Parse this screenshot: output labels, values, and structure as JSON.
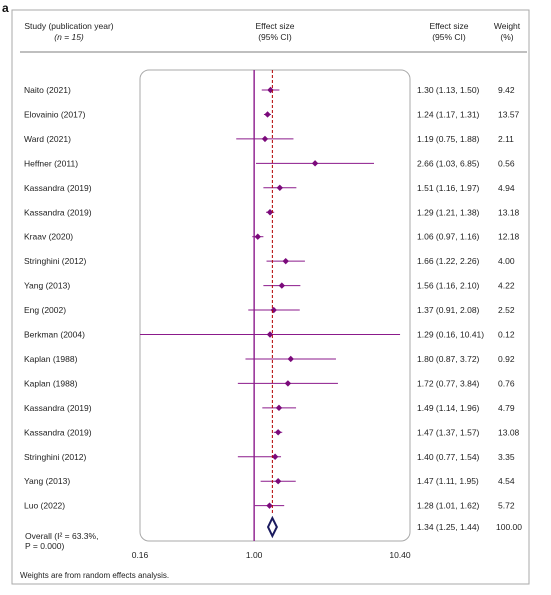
{
  "panel_label": "a",
  "header": {
    "study": "Study (publication year)",
    "study_n": "(n = 15)",
    "effect_mid": "Effect size",
    "effect_mid_ci": "(95% CI)",
    "effect_right": "Effect size",
    "effect_right_ci": "(95% CI)",
    "weight": "Weight",
    "weight_unit": "(%)"
  },
  "footnote": "Weights are from random effects analysis.",
  "colors": {
    "point": "#7b0a7b",
    "line": "#8b1a8b",
    "diamond": "#1a1a5e",
    "box": "#aaaaaa"
  },
  "chart_data": {
    "type": "forest",
    "x_scale": "log",
    "xlim": [
      0.16,
      10.4
    ],
    "xticks": [
      "0.16",
      "1.00",
      "10.40"
    ],
    "xtick_values": [
      0.16,
      1.0,
      10.4
    ],
    "null_value": 1.0,
    "studies": [
      {
        "study": "Naito (2021)",
        "es": 1.3,
        "lo": 1.13,
        "hi": 1.5,
        "ci": "1.30 (1.13, 1.50)",
        "weight": "9.42"
      },
      {
        "study": "Elovainio (2017)",
        "es": 1.24,
        "lo": 1.17,
        "hi": 1.31,
        "ci": "1.24 (1.17, 1.31)",
        "weight": "13.57"
      },
      {
        "study": "Ward (2021)",
        "es": 1.19,
        "lo": 0.75,
        "hi": 1.88,
        "ci": "1.19 (0.75, 1.88)",
        "weight": "2.11"
      },
      {
        "study": "Heffner (2011)",
        "es": 2.66,
        "lo": 1.03,
        "hi": 6.85,
        "ci": "2.66 (1.03, 6.85)",
        "weight": "0.56"
      },
      {
        "study": "Kassandra (2019)",
        "es": 1.51,
        "lo": 1.16,
        "hi": 1.97,
        "ci": "1.51 (1.16, 1.97)",
        "weight": "4.94"
      },
      {
        "study": "Kassandra (2019)",
        "es": 1.29,
        "lo": 1.21,
        "hi": 1.38,
        "ci": "1.29 (1.21, 1.38)",
        "weight": "13.18"
      },
      {
        "study": "Kraav (2020)",
        "es": 1.06,
        "lo": 0.97,
        "hi": 1.16,
        "ci": "1.06 (0.97, 1.16)",
        "weight": "12.18"
      },
      {
        "study": "Stringhini (2012)",
        "es": 1.66,
        "lo": 1.22,
        "hi": 2.26,
        "ci": "1.66 (1.22, 2.26)",
        "weight": "4.00"
      },
      {
        "study": "Yang (2013)",
        "es": 1.56,
        "lo": 1.16,
        "hi": 2.1,
        "ci": "1.56 (1.16, 2.10)",
        "weight": "4.22"
      },
      {
        "study": "Eng (2002)",
        "es": 1.37,
        "lo": 0.91,
        "hi": 2.08,
        "ci": "1.37 (0.91, 2.08)",
        "weight": "2.52"
      },
      {
        "study": "Berkman (2004)",
        "es": 1.29,
        "lo": 0.16,
        "hi": 10.41,
        "ci": "1.29 (0.16, 10.41)",
        "weight": "0.12"
      },
      {
        "study": "Kaplan (1988)",
        "es": 1.8,
        "lo": 0.87,
        "hi": 3.72,
        "ci": "1.80 (0.87, 3.72)",
        "weight": "0.92"
      },
      {
        "study": "Kaplan (1988)",
        "es": 1.72,
        "lo": 0.77,
        "hi": 3.84,
        "ci": "1.72 (0.77, 3.84)",
        "weight": "0.76"
      },
      {
        "study": "Kassandra (2019)",
        "es": 1.49,
        "lo": 1.14,
        "hi": 1.96,
        "ci": "1.49 (1.14, 1.96)",
        "weight": "4.79"
      },
      {
        "study": "Kassandra (2019)",
        "es": 1.47,
        "lo": 1.37,
        "hi": 1.57,
        "ci": "1.47 (1.37, 1.57)",
        "weight": "13.08"
      },
      {
        "study": "Stringhini (2012)",
        "es": 1.4,
        "lo": 0.77,
        "hi": 1.54,
        "ci": "1.40 (0.77, 1.54)",
        "weight": "3.35"
      },
      {
        "study": "Yang (2013)",
        "es": 1.47,
        "lo": 1.11,
        "hi": 1.95,
        "ci": "1.47 (1.11, 1.95)",
        "weight": "4.54"
      },
      {
        "study": "Luo (2022)",
        "es": 1.28,
        "lo": 1.01,
        "hi": 1.62,
        "ci": "1.28 (1.01, 1.62)",
        "weight": "5.72"
      }
    ],
    "overall": {
      "label_line1": "Overall (I² = 63.3%,",
      "label_line2": "P = 0.000)",
      "es": 1.34,
      "lo": 1.25,
      "hi": 1.44,
      "ci": "1.34 (1.25, 1.44)",
      "weight": "100.00"
    }
  }
}
